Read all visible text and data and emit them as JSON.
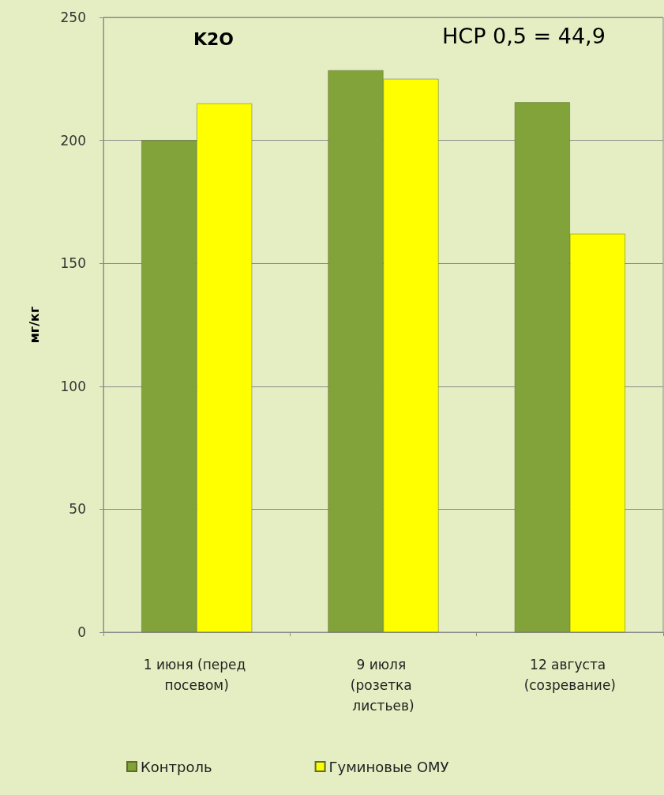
{
  "chart_data": {
    "type": "bar",
    "ylabel": "мг/кг",
    "categories": [
      "1 июня (перед посевом)",
      "9 июля (розетка листьев)",
      "12 августа (созревание)"
    ],
    "series": [
      {
        "name": "Контроль",
        "color": "#82a23a",
        "values": [
          200,
          228.5,
          215.5
        ]
      },
      {
        "name": "Гуминовые ОМУ",
        "color": "#ffff00",
        "values": [
          215,
          225,
          162
        ]
      }
    ],
    "ylim": [
      0,
      250
    ],
    "yticks": [
      0,
      50,
      100,
      150,
      200,
      250
    ],
    "grid": "y",
    "legend": "bottom",
    "annotations": [
      "K2O",
      "НСР 0,5 = 44,9"
    ]
  }
}
